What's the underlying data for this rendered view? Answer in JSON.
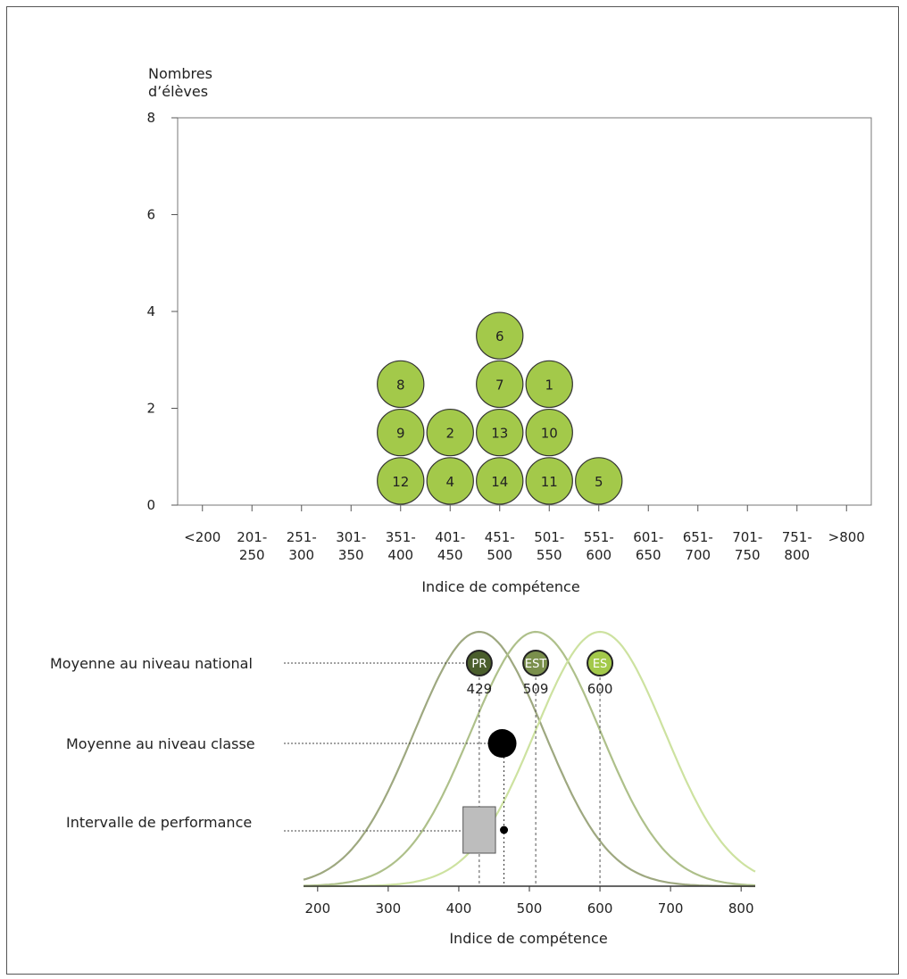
{
  "chart_data": [
    {
      "type": "bar",
      "style": "stacked-circles",
      "ylabel_line1": "Nombres",
      "ylabel_line2": "d’élèves",
      "xlabel": "Indice de compétence",
      "ylim": [
        0,
        8
      ],
      "yticks": [
        "0",
        "2",
        "4",
        "6",
        "8"
      ],
      "categories": [
        [
          "<200",
          ""
        ],
        [
          "201-",
          "250"
        ],
        [
          "251-",
          "300"
        ],
        [
          "301-",
          "350"
        ],
        [
          "351-",
          "400"
        ],
        [
          "401-",
          "450"
        ],
        [
          "451-",
          "500"
        ],
        [
          "501-",
          "550"
        ],
        [
          "551-",
          "600"
        ],
        [
          "601-",
          "650"
        ],
        [
          "651-",
          "700"
        ],
        [
          "701-",
          "750"
        ],
        [
          "751-",
          "800"
        ],
        [
          ">800",
          ""
        ]
      ],
      "values": [
        0,
        0,
        0,
        0,
        3,
        2,
        4,
        3,
        1,
        0,
        0,
        0,
        0,
        0
      ],
      "students": [
        [],
        [],
        [],
        [],
        [
          "12",
          "9",
          "8"
        ],
        [
          "4",
          "2"
        ],
        [
          "14",
          "13",
          "7",
          "6"
        ],
        [
          "11",
          "10",
          "1"
        ],
        [
          "5"
        ],
        [],
        [],
        [],
        [],
        []
      ],
      "circle_color": "#a3c94a"
    },
    {
      "type": "line",
      "xlabel": "Indice de compétence",
      "xlim": [
        180,
        820
      ],
      "xticks": [
        "200",
        "300",
        "400",
        "500",
        "600",
        "700",
        "800"
      ],
      "series": [
        {
          "name": "PR",
          "mean": 429,
          "color": "#9ea880"
        },
        {
          "name": "EST",
          "mean": 509,
          "color": "#aec08a"
        },
        {
          "name": "ES",
          "mean": 600,
          "color": "#cde2a0"
        }
      ],
      "markers": [
        {
          "label": "PR",
          "value": "429",
          "fill": "#4a5e2c"
        },
        {
          "label": "EST",
          "value": "509",
          "fill": "#7a8f4c"
        },
        {
          "label": "ES",
          "value": "600",
          "fill": "#a3c94a"
        }
      ],
      "legend_rows": {
        "national": "Moyenne au niveau national",
        "classe": "Moyenne au niveau classe",
        "intervalle": "Intervalle de performance"
      },
      "class_mean": 464,
      "performance_interval": [
        406,
        452
      ]
    }
  ]
}
